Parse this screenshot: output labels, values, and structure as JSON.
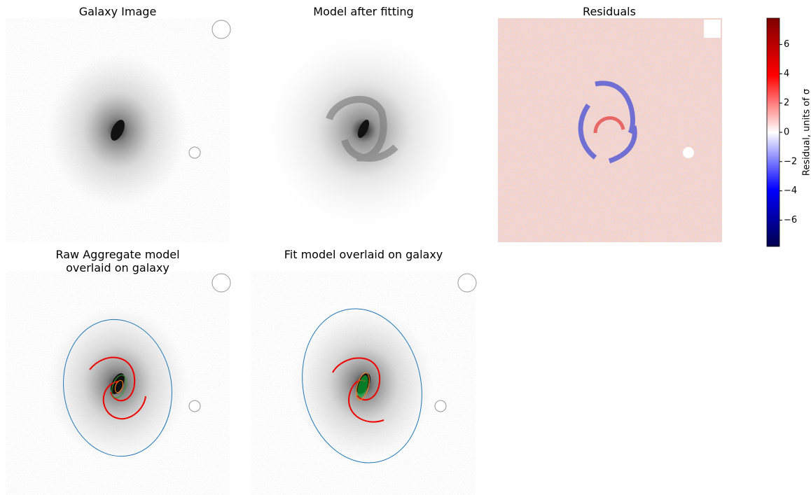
{
  "panels": [
    {
      "title": "Galaxy Image"
    },
    {
      "title": "Model after fitting"
    },
    {
      "title": "Residuals"
    },
    {
      "title": [
        "Raw Aggregate model",
        "overlaid on galaxy"
      ]
    },
    {
      "title": "Fit model overlaid on galaxy"
    }
  ],
  "colorbar": {
    "label": "Residual, units of σ",
    "lim": [
      -7.8,
      7.8
    ],
    "ticks": [
      {
        "value": -6,
        "label": "−6"
      },
      {
        "value": -4,
        "label": "−4"
      },
      {
        "value": -2,
        "label": "−2"
      },
      0,
      2,
      4,
      6
    ]
  }
}
